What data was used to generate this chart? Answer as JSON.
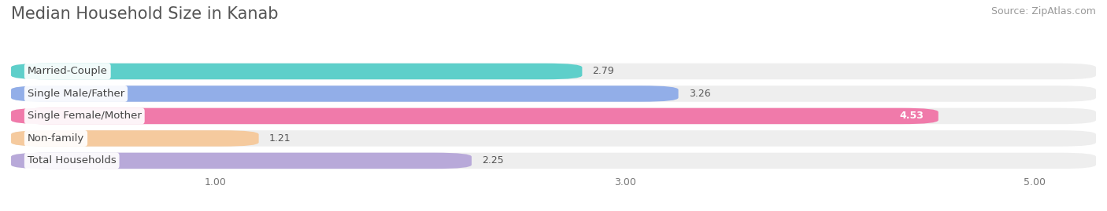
{
  "title": "Median Household Size in Kanab",
  "source": "Source: ZipAtlas.com",
  "categories": [
    "Married-Couple",
    "Single Male/Father",
    "Single Female/Mother",
    "Non-family",
    "Total Households"
  ],
  "values": [
    2.79,
    3.26,
    4.53,
    1.21,
    2.25
  ],
  "bar_colors": [
    "#5ecfca",
    "#92aee8",
    "#f07aaa",
    "#f5ca9e",
    "#b8a9d9"
  ],
  "bar_bg_color": "#eaeaea",
  "xmin": 0.0,
  "xmax": 5.3,
  "xticks": [
    1.0,
    3.0,
    5.0
  ],
  "xtick_labels": [
    "1.00",
    "3.00",
    "5.00"
  ],
  "title_fontsize": 15,
  "source_fontsize": 9,
  "label_fontsize": 9.5,
  "value_fontsize": 9,
  "background_color": "#ffffff",
  "bar_background_color": "#eeeeee",
  "grid_color": "#ffffff",
  "text_color": "#555555"
}
